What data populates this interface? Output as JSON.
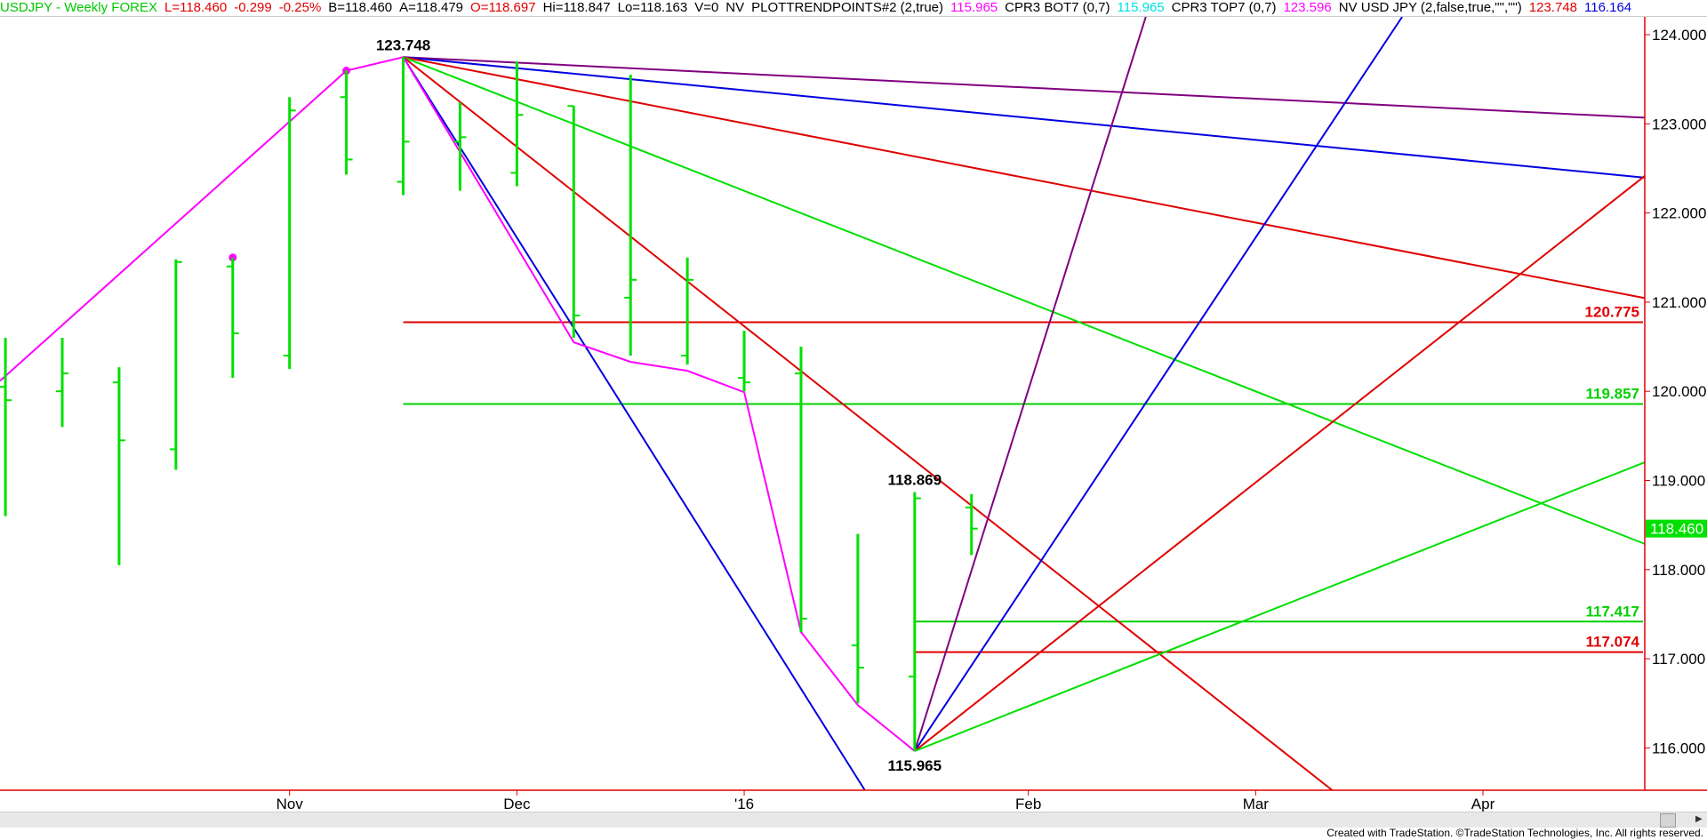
{
  "header": {
    "items": [
      {
        "text": "USDJPY - Weekly  FOREX",
        "color": "#00c800"
      },
      {
        "text": "L=118.460",
        "color": "#e00000"
      },
      {
        "text": "-0.299",
        "color": "#e00000"
      },
      {
        "text": "-0.25%",
        "color": "#e00000"
      },
      {
        "text": "B=118.460",
        "color": "#000000"
      },
      {
        "text": "A=118.479",
        "color": "#000000"
      },
      {
        "text": "O=118.697",
        "color": "#e00000"
      },
      {
        "text": "Hi=118.847",
        "color": "#000000"
      },
      {
        "text": "Lo=118.163",
        "color": "#000000"
      },
      {
        "text": "V=0",
        "color": "#000000"
      },
      {
        "text": "NV",
        "color": "#000000"
      },
      {
        "text": "PLOTTRENDPOINTS#2 (2,true)",
        "color": "#000000"
      },
      {
        "text": "115.965",
        "color": "#ff00ff"
      },
      {
        "text": "CPR3 BOT7 (0,7)",
        "color": "#000000"
      },
      {
        "text": "115.965",
        "color": "#00e0e0"
      },
      {
        "text": "CPR3 TOP7 (0,7)",
        "color": "#000000"
      },
      {
        "text": "123.596",
        "color": "#ff00ff"
      },
      {
        "text": "NV USD JPY (2,false,true,\"\",\"\")",
        "color": "#000000"
      },
      {
        "text": "123.748",
        "color": "#e00000"
      },
      {
        "text": "116.164",
        "color": "#0000e0"
      }
    ]
  },
  "chart_data": {
    "type": "ohlc",
    "symbol": "USDJPY",
    "ylim": [
      115.5,
      124.0
    ],
    "yticks": [
      "124.000",
      "123.000",
      "122.000",
      "121.000",
      "120.000",
      "119.000",
      "118.000",
      "117.000",
      "116.000"
    ],
    "xticks": [
      {
        "date": "2015-11-06",
        "label": "Nov"
      },
      {
        "date": "2015-12-04",
        "label": "Dec"
      },
      {
        "date": "2016-01-01",
        "label": "'16"
      },
      {
        "date": "2016-02-05",
        "label": "Feb"
      },
      {
        "date": "2016-03-04",
        "label": "Mar"
      },
      {
        "date": "2016-04-01",
        "label": "Apr"
      }
    ],
    "xlim": [
      "2015-10-02",
      "2016-04-20"
    ],
    "bar_color": "#00e000",
    "bars": [
      {
        "date": "2015-10-02",
        "o": 120.05,
        "h": 120.6,
        "l": 118.6,
        "c": 119.9
      },
      {
        "date": "2015-10-09",
        "o": 120.0,
        "h": 120.6,
        "l": 119.6,
        "c": 120.2
      },
      {
        "date": "2015-10-16",
        "o": 120.1,
        "h": 120.27,
        "l": 118.05,
        "c": 119.45
      },
      {
        "date": "2015-10-23",
        "o": 119.35,
        "h": 121.48,
        "l": 119.12,
        "c": 121.45
      },
      {
        "date": "2015-10-30",
        "o": 121.4,
        "h": 121.5,
        "l": 120.15,
        "c": 120.65
      },
      {
        "date": "2015-11-06",
        "o": 120.4,
        "h": 123.3,
        "l": 120.25,
        "c": 123.15
      },
      {
        "date": "2015-11-13",
        "o": 123.3,
        "h": 123.6,
        "l": 122.43,
        "c": 122.6
      },
      {
        "date": "2015-11-20",
        "o": 122.35,
        "h": 123.748,
        "l": 122.2,
        "c": 122.8
      },
      {
        "date": "2015-11-27",
        "o": 122.8,
        "h": 123.24,
        "l": 122.25,
        "c": 122.85
      },
      {
        "date": "2015-12-04",
        "o": 122.45,
        "h": 123.7,
        "l": 122.3,
        "c": 123.1
      },
      {
        "date": "2015-12-11",
        "o": 123.2,
        "h": 123.2,
        "l": 120.6,
        "c": 120.85
      },
      {
        "date": "2015-12-18",
        "o": 121.05,
        "h": 123.55,
        "l": 120.4,
        "c": 121.25
      },
      {
        "date": "2015-12-25",
        "o": 120.4,
        "h": 121.5,
        "l": 120.3,
        "c": 121.25
      },
      {
        "date": "2016-01-01",
        "o": 120.15,
        "h": 120.68,
        "l": 120.0,
        "c": 120.1
      },
      {
        "date": "2016-01-08",
        "o": 120.2,
        "h": 120.5,
        "l": 117.3,
        "c": 117.45
      },
      {
        "date": "2016-01-15",
        "o": 117.15,
        "h": 118.4,
        "l": 116.5,
        "c": 116.9
      },
      {
        "date": "2016-01-22",
        "o": 116.8,
        "h": 118.869,
        "l": 115.965,
        "c": 118.8
      },
      {
        "date": "2016-01-29",
        "o": 118.697,
        "h": 118.847,
        "l": 118.163,
        "c": 118.46
      }
    ],
    "trend_points": {
      "color": "#ff00ff",
      "points": [
        {
          "date": "2015-09-25",
          "y": 119.6
        },
        {
          "date": "2015-11-13",
          "y": 123.596
        },
        {
          "date": "2015-11-20",
          "y": 123.748
        },
        {
          "date": "2015-12-11",
          "y": 120.55
        },
        {
          "date": "2015-12-18",
          "y": 120.33
        },
        {
          "date": "2015-12-25",
          "y": 120.23
        },
        {
          "date": "2016-01-01",
          "y": 119.99
        },
        {
          "date": "2016-01-08",
          "y": 117.3
        },
        {
          "date": "2016-01-15",
          "y": 116.48
        },
        {
          "date": "2016-01-22",
          "y": 115.965
        }
      ],
      "markers": [
        {
          "date": "2015-11-13",
          "y": 123.596
        },
        {
          "date": "2015-10-30",
          "y": 121.5
        }
      ]
    },
    "trendlines": [
      {
        "color": "#800080",
        "from": {
          "date": "2015-11-20",
          "y": 123.748
        },
        "to": {
          "date": "2016-04-15",
          "y": 123.095
        }
      },
      {
        "color": "#0000e0",
        "from": {
          "date": "2015-11-20",
          "y": 123.748
        },
        "to": {
          "date": "2016-04-15",
          "y": 122.448
        }
      },
      {
        "color": "#e00000",
        "from": {
          "date": "2015-11-20",
          "y": 123.748
        },
        "to": {
          "date": "2016-04-15",
          "y": 121.15
        }
      },
      {
        "color": "#00e000",
        "from": {
          "date": "2015-11-20",
          "y": 123.748
        },
        "to": {
          "date": "2016-04-15",
          "y": 118.5
        }
      },
      {
        "color": "#e00000",
        "from": {
          "date": "2015-11-20",
          "y": 123.748
        },
        "to": {
          "date": "2016-03-11",
          "y": 115.7
        }
      },
      {
        "color": "#0000e0",
        "from": {
          "date": "2015-11-20",
          "y": 123.748
        },
        "to": {
          "date": "2016-01-15",
          "y": 115.65
        }
      },
      {
        "color": "#800080",
        "from": {
          "date": "2016-01-22",
          "y": 115.965
        },
        "to": {
          "date": "2016-02-19",
          "y": 124.065
        }
      },
      {
        "color": "#0000e0",
        "from": {
          "date": "2016-01-22",
          "y": 115.965
        },
        "to": {
          "date": "2016-03-18",
          "y": 123.645
        }
      },
      {
        "color": "#e00000",
        "from": {
          "date": "2016-01-22",
          "y": 115.965
        },
        "to": {
          "date": "2016-04-15",
          "y": 121.99
        }
      },
      {
        "color": "#00e000",
        "from": {
          "date": "2016-01-22",
          "y": 115.965
        },
        "to": {
          "date": "2016-04-15",
          "y": 118.99
        }
      }
    ],
    "levels": [
      {
        "value": 120.775,
        "label": "120.775",
        "color": "#e00000",
        "from": "2015-11-20"
      },
      {
        "value": 119.857,
        "label": "119.857",
        "color": "#00d000",
        "from": "2015-11-20"
      },
      {
        "value": 117.417,
        "label": "117.417",
        "color": "#00d000",
        "from": "2016-01-22"
      },
      {
        "value": 117.074,
        "label": "117.074",
        "color": "#e00000",
        "from": "2016-01-22"
      }
    ],
    "annotations": [
      {
        "date": "2015-11-20",
        "y": 123.748,
        "label": "123.748",
        "position": "above"
      },
      {
        "date": "2016-01-22",
        "y": 118.869,
        "label": "118.869",
        "position": "above"
      },
      {
        "date": "2016-01-22",
        "y": 115.965,
        "label": "115.965",
        "position": "below"
      }
    ],
    "last_price": {
      "value": 118.46,
      "label": "118.460",
      "color": "#00e000"
    }
  },
  "footer": {
    "text": "Created with TradeStation. ©TradeStation Technologies, Inc. All rights reserved."
  }
}
